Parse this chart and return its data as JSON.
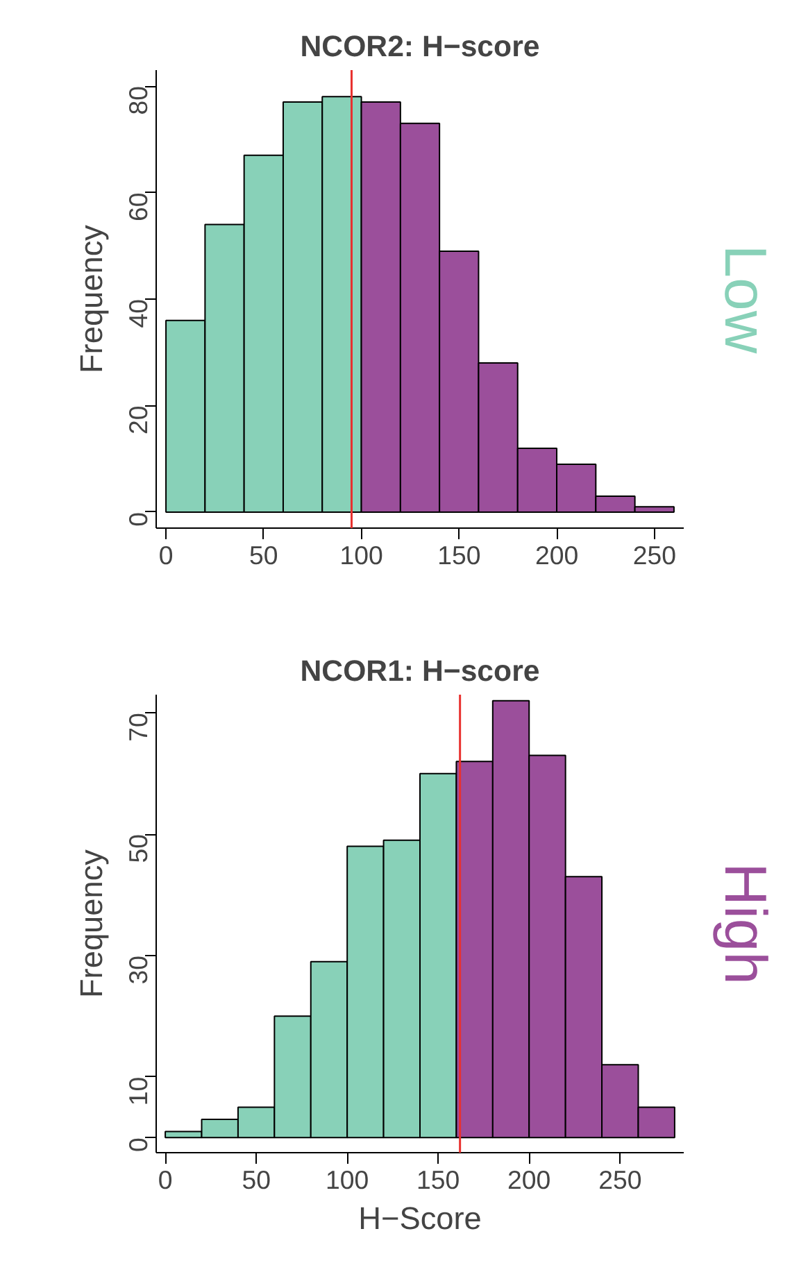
{
  "chart_data": [
    {
      "type": "histogram",
      "title": "NCOR2: H−score",
      "ylabel": "Frequency",
      "bins": [
        0,
        20,
        40,
        60,
        80,
        100,
        120,
        140,
        160,
        180,
        200,
        220,
        240,
        260
      ],
      "values": [
        36,
        54,
        67,
        77,
        78,
        77,
        73,
        49,
        28,
        12,
        9,
        3,
        1
      ],
      "colors": [
        "#88d1b8",
        "#88d1b8",
        "#88d1b8",
        "#88d1b8",
        "#88d1b8",
        "#9b4f9b",
        "#9b4f9b",
        "#9b4f9b",
        "#9b4f9b",
        "#9b4f9b",
        "#9b4f9b",
        "#9b4f9b",
        "#9b4f9b"
      ],
      "xlim": [
        -5,
        265
      ],
      "ylim": [
        -3,
        83
      ],
      "xticks": [
        0,
        50,
        100,
        150,
        200,
        250
      ],
      "yticks": [
        0,
        20,
        40,
        60,
        80
      ],
      "ref_lines": [
        {
          "axis": "x",
          "value": 95,
          "color": "#e8312f"
        }
      ],
      "annotations": [
        "Low"
      ],
      "grid": false
    },
    {
      "type": "histogram",
      "title": "NCOR1: H−score",
      "xlabel": "H−Score",
      "ylabel": "Frequency",
      "bins": [
        0,
        20,
        40,
        60,
        80,
        100,
        120,
        140,
        160,
        180,
        200,
        220,
        240,
        260,
        280
      ],
      "values": [
        1,
        3,
        5,
        20,
        29,
        48,
        49,
        60,
        62,
        72,
        63,
        43,
        12,
        5
      ],
      "colors": [
        "#88d1b8",
        "#88d1b8",
        "#88d1b8",
        "#88d1b8",
        "#88d1b8",
        "#88d1b8",
        "#88d1b8",
        "#88d1b8",
        "#9b4f9b",
        "#9b4f9b",
        "#9b4f9b",
        "#9b4f9b",
        "#9b4f9b",
        "#9b4f9b"
      ],
      "xlim": [
        -5,
        285
      ],
      "ylim": [
        -2.5,
        73
      ],
      "xticks": [
        0,
        50,
        100,
        150,
        200,
        250
      ],
      "yticks": [
        0,
        10,
        30,
        50,
        70
      ],
      "ref_lines": [
        {
          "axis": "x",
          "value": 162,
          "color": "#e8312f"
        }
      ],
      "annotations": [
        "High"
      ],
      "grid": false
    }
  ]
}
